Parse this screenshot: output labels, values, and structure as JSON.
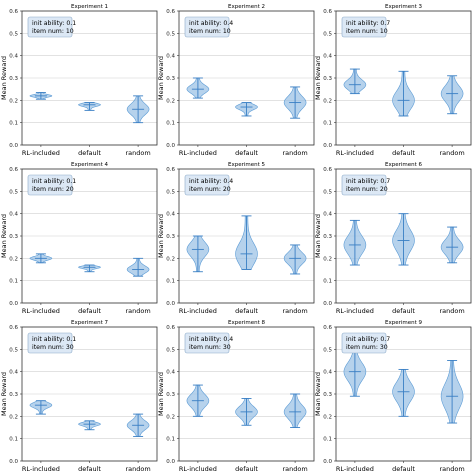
{
  "colors": {
    "violin_fill": "#9dc3e6",
    "violin_edge": "#5b9bd5",
    "line": "#3a7fc4",
    "grid": "#d0d0d0",
    "axes": "#333333",
    "text_box_fill": "#dce8f5",
    "text_box_edge": "#8aa9c8"
  },
  "chart_data": [
    {
      "type": "violin",
      "title": "Experiment 1",
      "ylabel": "Mean Reward",
      "categories": [
        "RL-included",
        "default",
        "random"
      ],
      "ylim": [
        0,
        0.6
      ],
      "yticks": [
        "0.0",
        "0.1",
        "0.2",
        "0.3",
        "0.4",
        "0.5",
        "0.6"
      ],
      "grid": true,
      "annotation": [
        "init ability: 0.1",
        "item num: 10"
      ],
      "series": [
        {
          "min": 0.205,
          "max": 0.235,
          "median": 0.22
        },
        {
          "min": 0.155,
          "max": 0.19,
          "median": 0.18
        },
        {
          "min": 0.1,
          "max": 0.22,
          "median": 0.16
        }
      ]
    },
    {
      "type": "violin",
      "title": "Experiment 2",
      "ylabel": "Mean Reward",
      "categories": [
        "RL-included",
        "default",
        "random"
      ],
      "ylim": [
        0,
        0.6
      ],
      "yticks": [
        "0.0",
        "0.1",
        "0.2",
        "0.3",
        "0.4",
        "0.5",
        "0.6"
      ],
      "grid": true,
      "annotation": [
        "init ability: 0.4",
        "item num: 10"
      ],
      "series": [
        {
          "min": 0.21,
          "max": 0.3,
          "median": 0.25
        },
        {
          "min": 0.13,
          "max": 0.19,
          "median": 0.17
        },
        {
          "min": 0.12,
          "max": 0.26,
          "median": 0.19
        }
      ]
    },
    {
      "type": "violin",
      "title": "Experiment 3",
      "ylabel": "Mean Reward",
      "categories": [
        "RL-included",
        "default",
        "random"
      ],
      "ylim": [
        0,
        0.6
      ],
      "yticks": [
        "0.0",
        "0.1",
        "0.2",
        "0.3",
        "0.4",
        "0.5",
        "0.6"
      ],
      "grid": true,
      "annotation": [
        "init ability: 0.7",
        "item num: 10"
      ],
      "series": [
        {
          "min": 0.23,
          "max": 0.34,
          "median": 0.27
        },
        {
          "min": 0.13,
          "max": 0.33,
          "median": 0.2
        },
        {
          "min": 0.14,
          "max": 0.31,
          "median": 0.23
        }
      ]
    },
    {
      "type": "violin",
      "title": "Experiment 4",
      "ylabel": "Mean Reward",
      "categories": [
        "RL-included",
        "default",
        "random"
      ],
      "ylim": [
        0,
        0.6
      ],
      "yticks": [
        "0.0",
        "0.1",
        "0.2",
        "0.3",
        "0.4",
        "0.5",
        "0.6"
      ],
      "grid": true,
      "annotation": [
        "init ability: 0.1",
        "item num: 20"
      ],
      "series": [
        {
          "min": 0.18,
          "max": 0.22,
          "median": 0.2
        },
        {
          "min": 0.14,
          "max": 0.17,
          "median": 0.16
        },
        {
          "min": 0.12,
          "max": 0.2,
          "median": 0.15
        }
      ]
    },
    {
      "type": "violin",
      "title": "Experiment 5",
      "ylabel": "Mean Reward",
      "categories": [
        "RL-included",
        "default",
        "random"
      ],
      "ylim": [
        0,
        0.6
      ],
      "yticks": [
        "0.0",
        "0.1",
        "0.2",
        "0.3",
        "0.4",
        "0.5",
        "0.6"
      ],
      "grid": true,
      "annotation": [
        "init ability: 0.4",
        "item num: 20"
      ],
      "series": [
        {
          "min": 0.14,
          "max": 0.3,
          "median": 0.24
        },
        {
          "min": 0.15,
          "max": 0.39,
          "median": 0.22
        },
        {
          "min": 0.13,
          "max": 0.26,
          "median": 0.2
        }
      ]
    },
    {
      "type": "violin",
      "title": "Experiment 6",
      "ylabel": "Mean Reward",
      "categories": [
        "RL-included",
        "default",
        "random"
      ],
      "ylim": [
        0,
        0.6
      ],
      "yticks": [
        "0.0",
        "0.1",
        "0.2",
        "0.3",
        "0.4",
        "0.5",
        "0.6"
      ],
      "grid": true,
      "annotation": [
        "init ability: 0.7",
        "item num: 20"
      ],
      "series": [
        {
          "min": 0.17,
          "max": 0.37,
          "median": 0.26
        },
        {
          "min": 0.17,
          "max": 0.4,
          "median": 0.28
        },
        {
          "min": 0.18,
          "max": 0.34,
          "median": 0.25
        }
      ]
    },
    {
      "type": "violin",
      "title": "Experiment 7",
      "ylabel": "Mean Reward",
      "categories": [
        "RL-included",
        "default",
        "random"
      ],
      "ylim": [
        0,
        0.6
      ],
      "yticks": [
        "0.0",
        "0.1",
        "0.2",
        "0.3",
        "0.4",
        "0.5",
        "0.6"
      ],
      "grid": true,
      "annotation": [
        "init ability: 0.1",
        "item num: 30"
      ],
      "series": [
        {
          "min": 0.21,
          "max": 0.27,
          "median": 0.25
        },
        {
          "min": 0.14,
          "max": 0.18,
          "median": 0.165
        },
        {
          "min": 0.11,
          "max": 0.21,
          "median": 0.16
        }
      ]
    },
    {
      "type": "violin",
      "title": "Experiment 8",
      "ylabel": "Mean Reward",
      "categories": [
        "RL-included",
        "default",
        "random"
      ],
      "ylim": [
        0,
        0.6
      ],
      "yticks": [
        "0.0",
        "0.1",
        "0.2",
        "0.3",
        "0.4",
        "0.5",
        "0.6"
      ],
      "grid": true,
      "annotation": [
        "init ability: 0.4",
        "item num: 30"
      ],
      "series": [
        {
          "min": 0.2,
          "max": 0.34,
          "median": 0.27
        },
        {
          "min": 0.16,
          "max": 0.28,
          "median": 0.22
        },
        {
          "min": 0.15,
          "max": 0.3,
          "median": 0.22
        }
      ]
    },
    {
      "type": "violin",
      "title": "Experiment 9",
      "ylabel": "Mean Reward",
      "categories": [
        "RL-included",
        "default",
        "random"
      ],
      "ylim": [
        0,
        0.6
      ],
      "yticks": [
        "0.0",
        "0.1",
        "0.2",
        "0.3",
        "0.4",
        "0.5",
        "0.6"
      ],
      "grid": true,
      "annotation": [
        "init ability: 0.7",
        "item num: 30"
      ],
      "series": [
        {
          "min": 0.29,
          "max": 0.49,
          "median": 0.4
        },
        {
          "min": 0.2,
          "max": 0.41,
          "median": 0.31
        },
        {
          "min": 0.17,
          "max": 0.45,
          "median": 0.29
        }
      ]
    }
  ]
}
